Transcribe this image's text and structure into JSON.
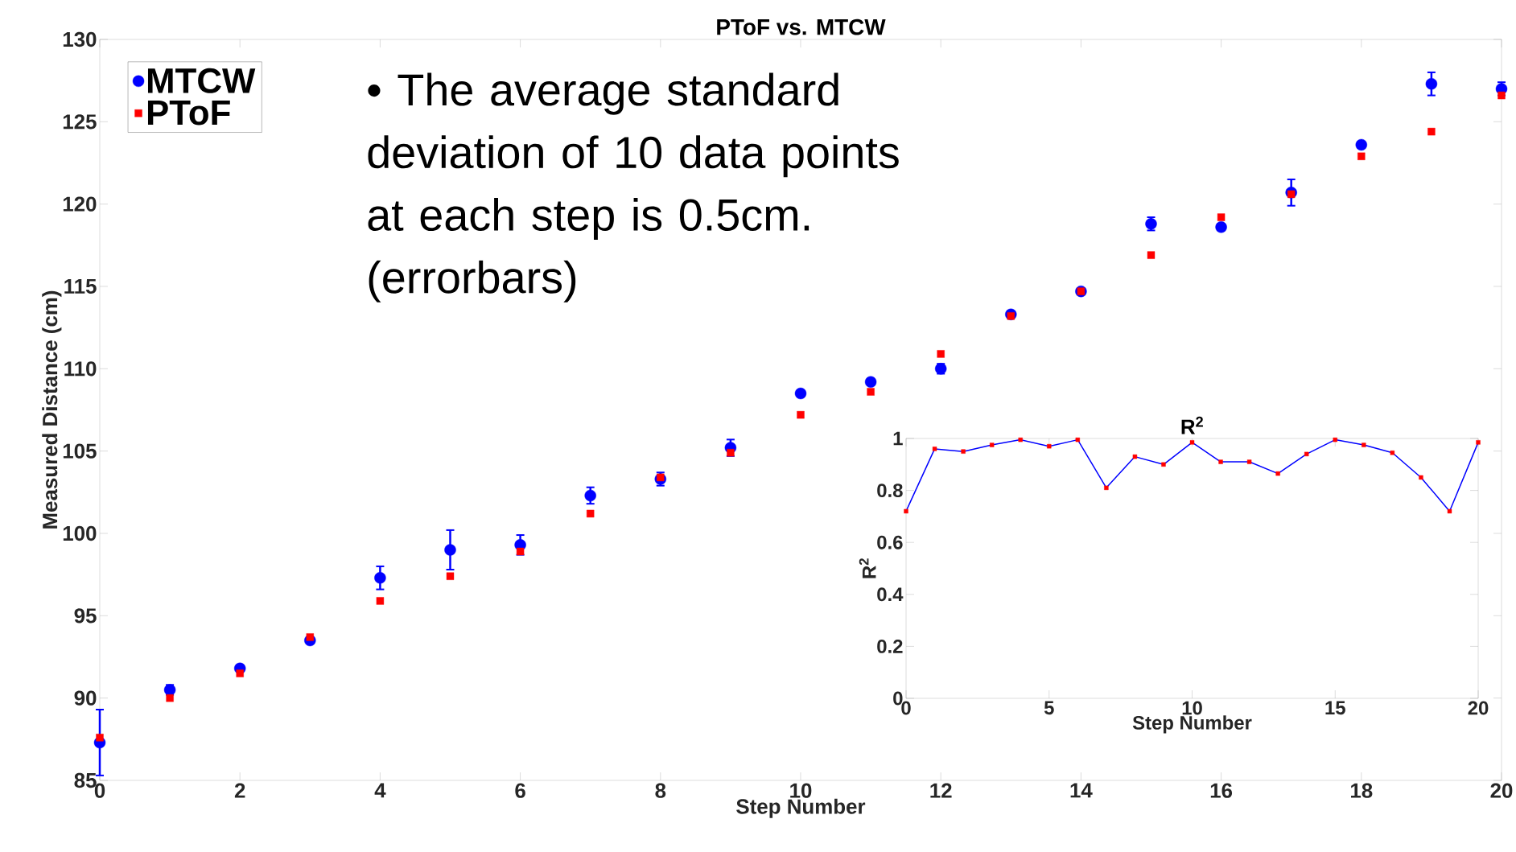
{
  "chart_data": [
    {
      "type": "scatter",
      "title": "PToF vs. MTCW",
      "xlabel": "Step Number",
      "ylabel": "Measured Distance (cm)",
      "x": [
        0,
        1,
        2,
        3,
        4,
        5,
        6,
        7,
        8,
        9,
        10,
        11,
        12,
        13,
        14,
        15,
        16,
        17,
        18,
        19,
        20
      ],
      "series": [
        {
          "name": "MTCW",
          "color": "#0000ff",
          "marker": "circle",
          "values": [
            87.3,
            90.5,
            91.8,
            93.5,
            97.3,
            99.0,
            99.3,
            102.3,
            103.3,
            105.2,
            108.5,
            109.2,
            110.0,
            113.3,
            114.7,
            118.8,
            118.6,
            120.7,
            123.6,
            127.3,
            127.0
          ],
          "errors": [
            2.0,
            0.3,
            0.2,
            0.2,
            0.7,
            1.2,
            0.6,
            0.5,
            0.4,
            0.5,
            0.2,
            0.2,
            0.3,
            0.2,
            0.2,
            0.4,
            0.2,
            0.8,
            0.2,
            0.7,
            0.4
          ]
        },
        {
          "name": "PToF",
          "color": "#ff0000",
          "marker": "square",
          "values": [
            87.6,
            90.0,
            91.5,
            93.7,
            95.9,
            97.4,
            98.9,
            101.2,
            103.4,
            104.9,
            107.2,
            108.6,
            110.9,
            113.2,
            114.7,
            116.9,
            119.2,
            120.6,
            122.9,
            124.4,
            126.6
          ]
        }
      ],
      "xlim": [
        0,
        20
      ],
      "xticks": [
        0,
        2,
        4,
        6,
        8,
        10,
        12,
        14,
        16,
        18,
        20
      ],
      "ylim": [
        85,
        130
      ],
      "yticks": [
        85,
        90,
        95,
        100,
        105,
        110,
        115,
        120,
        125,
        130
      ],
      "legend": "top left",
      "grid": false,
      "annotations": [
        "• The average standard deviation of 10 data points at each step is 0.5cm. (errorbars)"
      ]
    },
    {
      "type": "line",
      "title": "R$^{2}$",
      "xlabel": "Step Number",
      "ylabel": "R$^{2}$",
      "x": [
        0,
        1,
        2,
        3,
        4,
        5,
        6,
        7,
        8,
        9,
        10,
        11,
        12,
        13,
        14,
        15,
        16,
        17,
        18,
        19,
        20
      ],
      "series": [
        {
          "color": "#0000ff",
          "marker": "square",
          "line_style": "solid",
          "colors": [
            "#ff0000",
            "#ff0000",
            "#ff0000",
            "#ff0000",
            "#ff0000",
            "#ff0000",
            "#ff0000",
            "#ff0000",
            "#ff0000",
            "#ff0000",
            "#ff0000",
            "#ff0000",
            "#ff0000",
            "#ff0000",
            "#ff0000",
            "#ff0000",
            "#ff0000",
            "#ff0000",
            "#ff0000",
            "#ff0000",
            "#ff0000"
          ],
          "values": [
            0.72,
            0.96,
            0.95,
            0.975,
            0.995,
            0.97,
            0.995,
            0.81,
            0.93,
            0.9,
            0.985,
            0.91,
            0.91,
            0.865,
            0.94,
            0.995,
            0.975,
            0.945,
            0.85,
            0.72,
            0.985
          ]
        }
      ],
      "xlim": [
        0,
        20
      ],
      "xticks": [
        0,
        5,
        10,
        15,
        20
      ],
      "ylim": [
        0,
        1
      ],
      "yticks": [
        0,
        0.2,
        0.4,
        0.6,
        0.8,
        1
      ],
      "grid": false
    }
  ]
}
